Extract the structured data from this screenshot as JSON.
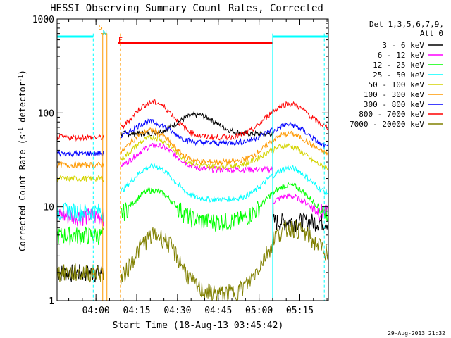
{
  "chart_data": {
    "type": "line",
    "title": "HESSI Observing Summary Count Rates, Corrected",
    "xlabel": "Start Time (18-Aug-13 03:45:42)",
    "ylabel_main": "Corrected Count Rate (s",
    "ylabel_exp1": "-1",
    "ylabel_mid": " detector",
    "ylabel_exp2": "-1",
    "ylabel_end": ")",
    "footer": "29-Aug-2013 21:32",
    "y_scale": "log",
    "ylim": [
      1,
      1000
    ],
    "xlim": [
      "03:45:42",
      "05:25:30"
    ],
    "x_ticks": [
      "04:00",
      "04:15",
      "04:30",
      "04:45",
      "05:00",
      "05:15"
    ],
    "y_ticks": [
      "1",
      "10",
      "100",
      "1000"
    ],
    "legend_header_1": "Det 1,3,5,6,7,9,",
    "legend_header_2": "Att 0",
    "legend_position": "right",
    "flags": [
      {
        "label": "S",
        "color": "#ff9900"
      },
      {
        "label": "N",
        "color": "#00e5e5"
      },
      {
        "label": "F",
        "color": "#ff0000"
      }
    ],
    "series": [
      {
        "name": "3 - 6 keV",
        "color": "#000000",
        "pre": 2.0,
        "peaks": [
          [
            "04:37",
            95
          ]
        ],
        "post": 7.0,
        "mid_base": 60
      },
      {
        "name": "6 - 12 keV",
        "color": "#ff00ff",
        "pre": 8.0,
        "peaks": [
          [
            "04:22",
            45
          ],
          [
            "05:11",
            13
          ]
        ],
        "post": 8,
        "mid_base": 25
      },
      {
        "name": "12 - 25 keV",
        "color": "#00ff00",
        "pre": 5.0,
        "peaks": [
          [
            "04:21",
            15
          ],
          [
            "05:11",
            17
          ]
        ],
        "post": 8,
        "mid_base": 7
      },
      {
        "name": "25 - 50 keV",
        "color": "#00ffff",
        "pre": 9.0,
        "peaks": [
          [
            "04:21",
            27
          ],
          [
            "05:11",
            26
          ]
        ],
        "post": 13,
        "mid_base": 12
      },
      {
        "name": "50 - 100 keV",
        "color": "#d4d400",
        "pre": 20,
        "peaks": [
          [
            "04:21",
            55
          ],
          [
            "05:10",
            45
          ]
        ],
        "post": 25,
        "mid_base": 27
      },
      {
        "name": "100 - 300 keV",
        "color": "#ff9900",
        "pre": 28,
        "peaks": [
          [
            "04:20",
            65
          ],
          [
            "05:11",
            60
          ]
        ],
        "post": 35,
        "mid_base": 30
      },
      {
        "name": "300 - 800 keV",
        "color": "#0000ff",
        "pre": 37,
        "peaks": [
          [
            "04:20",
            80
          ],
          [
            "05:11",
            75
          ]
        ],
        "post": 40,
        "mid_base": 48
      },
      {
        "name": "800 - 7000 keV",
        "color": "#ff0000",
        "pre": 55,
        "peaks": [
          [
            "04:21",
            130
          ],
          [
            "05:11",
            125
          ]
        ],
        "post": 65,
        "mid_base": 55
      },
      {
        "name": "7000 - 20000 keV",
        "color": "#808000",
        "pre": 2.0,
        "peaks": [
          [
            "04:22",
            5
          ],
          [
            "05:12",
            6
          ]
        ],
        "post": 3.0,
        "mid_base": 1.2
      }
    ],
    "flag_bars": [
      {
        "label": "N",
        "color": "#00ffff",
        "start": "03:45:42",
        "end": "03:59:00",
        "level": 650
      },
      {
        "label": "F",
        "color": "#ff0000",
        "start": "04:08:00",
        "end": "05:05:00",
        "level": 560
      },
      {
        "label": "N",
        "color": "#00ffff",
        "start": "05:05:00",
        "end": "05:25:30",
        "level": 650
      }
    ],
    "eclipse_lines": {
      "solid": [
        "04:03",
        "05:05"
      ],
      "dashed": [
        "03:59",
        "04:08",
        "05:24"
      ]
    },
    "data_gap": [
      "04:03",
      "04:09"
    ]
  }
}
